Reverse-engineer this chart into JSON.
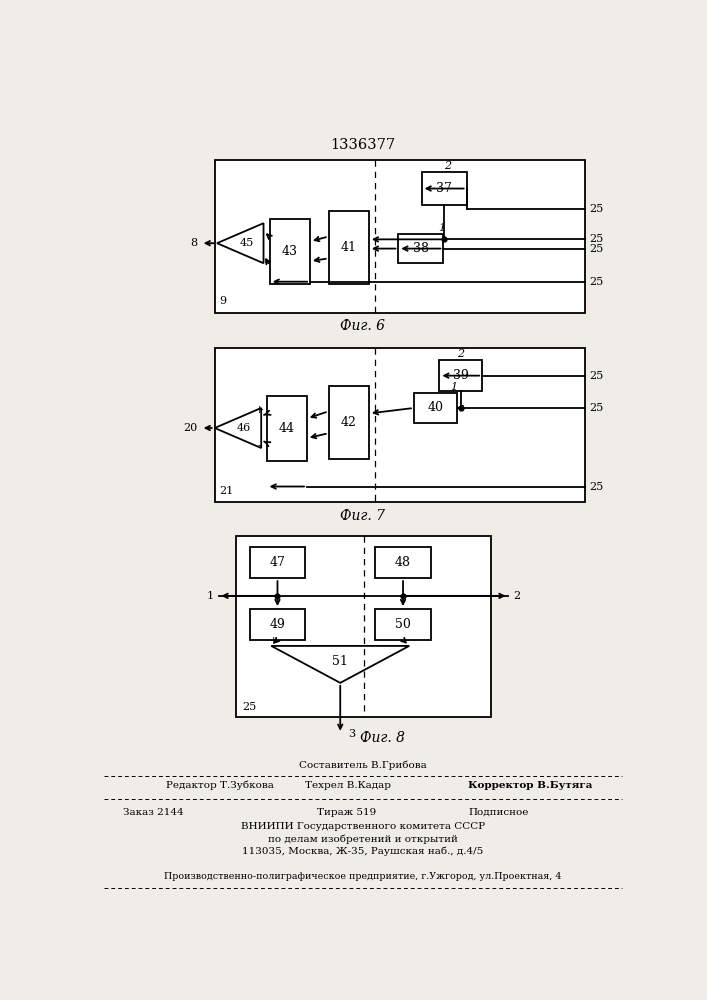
{
  "title": "1336377",
  "bg_color": "#f0ede8",
  "fig6_label": "Фиг. 6",
  "fig7_label": "Фиг. 7",
  "fig8_label": "Фиг. 8"
}
